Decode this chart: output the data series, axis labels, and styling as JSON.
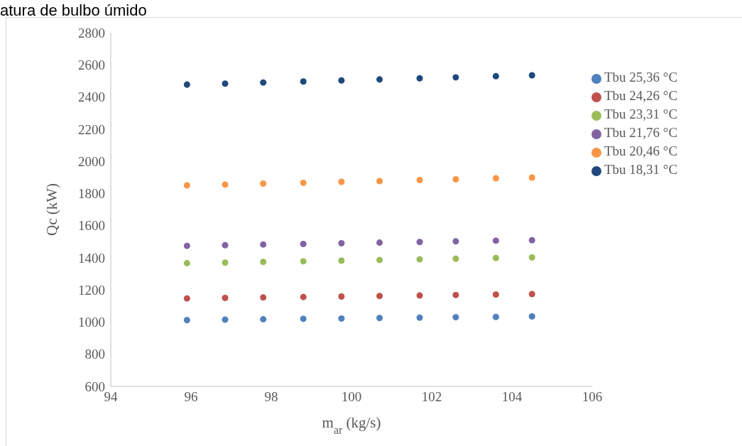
{
  "chart_data": {
    "type": "scatter",
    "title": "atura de bulbo úmido",
    "xlabel": "m$_{ar}$ (kg/s)",
    "ylabel": "Qc (kW)",
    "x": [
      95.9,
      96.85,
      97.8,
      98.8,
      99.75,
      100.7,
      101.7,
      102.6,
      103.6,
      104.5
    ],
    "series": [
      {
        "name": "Tbu 25,36 °C",
        "color": "#4f81bd",
        "values": [
          1012,
          1015,
          1017,
          1020,
          1022,
          1025,
          1027,
          1030,
          1032,
          1035
        ]
      },
      {
        "name": "Tbu 24,26 °C",
        "color": "#c0504d",
        "values": [
          1147,
          1150,
          1153,
          1156,
          1159,
          1162,
          1165,
          1168,
          1171,
          1174
        ]
      },
      {
        "name": "Tbu 23,31 °C",
        "color": "#9bbb59",
        "values": [
          1366,
          1370,
          1374,
          1378,
          1382,
          1386,
          1390,
          1394,
          1398,
          1402
        ]
      },
      {
        "name": "Tbu 21,76 °C",
        "color": "#8064a2",
        "values": [
          1474,
          1478,
          1482,
          1486,
          1490,
          1494,
          1498,
          1502,
          1506,
          1509
        ]
      },
      {
        "name": "Tbu 20,46 °C",
        "color": "#f79646",
        "values": [
          1850,
          1855,
          1861,
          1866,
          1872,
          1877,
          1883,
          1888,
          1894,
          1899
        ]
      },
      {
        "name": "Tbu 18,31 °C",
        "color": "#1f497d",
        "values": [
          2477,
          2483,
          2490,
          2496,
          2503,
          2509,
          2516,
          2522,
          2529,
          2535
        ]
      }
    ],
    "xlim": [
      94,
      106
    ],
    "xticks": [
      94,
      96,
      98,
      100,
      102,
      104,
      106
    ],
    "ylim": [
      600,
      2800
    ],
    "yticks": [
      600,
      800,
      1000,
      1200,
      1400,
      1600,
      1800,
      2000,
      2200,
      2400,
      2600,
      2800
    ],
    "grid": false,
    "legend": "right",
    "marker": "circle"
  }
}
